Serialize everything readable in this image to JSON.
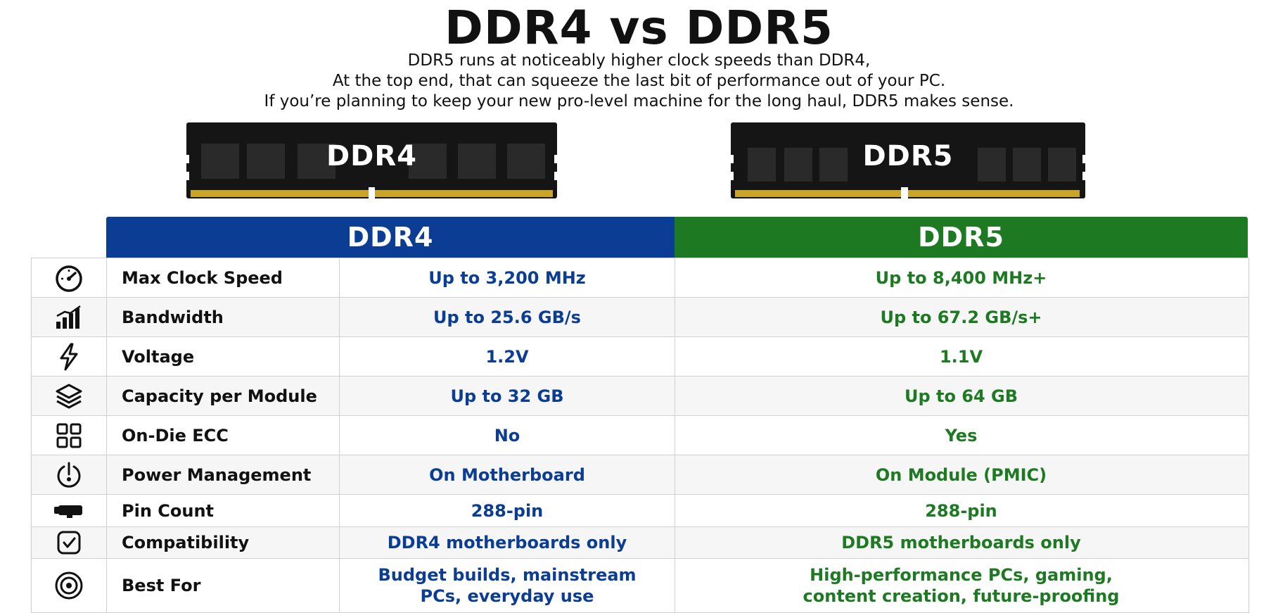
{
  "title": "DDR4 vs DDR5",
  "subtitle": [
    "DDR5 runs at noticeably higher clock speeds than DDR4,",
    "At the top end, that can squeeze the last bit of performance out of your PC.",
    "If you’re planning to keep your new pro-level machine for the long haul, DDR5 makes sense."
  ],
  "modules": {
    "ddr4_label": "DDR4",
    "ddr5_label": "DDR5"
  },
  "columns": {
    "ddr4": "DDR4",
    "ddr5": "DDR5"
  },
  "colors": {
    "ddr4": "#0a3d93",
    "ddr5": "#1e7a22"
  },
  "rows": [
    {
      "icon": "speedometer-icon",
      "label": "Max Clock Speed",
      "ddr4": "Up to 3,200 MHz",
      "ddr5": "Up to 8,400 MHz+"
    },
    {
      "icon": "bandwidth-bars-icon",
      "label": "Bandwidth",
      "ddr4": "Up to 25.6 GB/s",
      "ddr5": "Up to 67.2 GB/s+"
    },
    {
      "icon": "lightning-icon",
      "label": "Voltage",
      "ddr4": "1.2V",
      "ddr5": "1.1V"
    },
    {
      "icon": "layers-icon",
      "label": "Capacity per Module",
      "ddr4": "Up to 32 GB",
      "ddr5": "Up to 64 GB"
    },
    {
      "icon": "grid-squares-icon",
      "label": "On-Die ECC",
      "ddr4": "No",
      "ddr5": "Yes"
    },
    {
      "icon": "power-management-icon",
      "label": "Power Management",
      "ddr4": "On Motherboard",
      "ddr5": "On Module (PMIC)"
    },
    {
      "icon": "pin-connector-icon",
      "label": "Pin Count",
      "ddr4": "288-pin",
      "ddr5": "288-pin"
    },
    {
      "icon": "checkbox-icon",
      "label": "Compatibility",
      "ddr4": "DDR4 motherboards only",
      "ddr5": "DDR5 motherboards only"
    },
    {
      "icon": "target-icon",
      "label": "Best For",
      "ddr4": "Budget builds, mainstream PCs, everyday use",
      "ddr5": "High-performance PCs, gaming, content creation, future-proofing"
    }
  ]
}
